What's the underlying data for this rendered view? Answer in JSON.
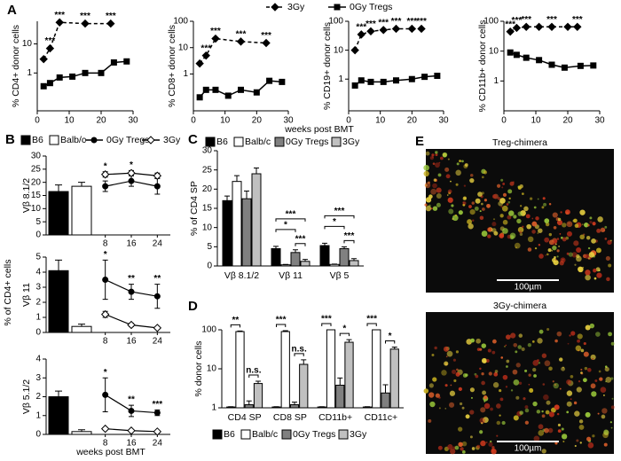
{
  "chart_data": [
    {
      "type": "line",
      "panel": "A",
      "log_y": true,
      "ylabel": "% CD4+ donor cells",
      "xlabel": "weeks post BMT",
      "xlim": [
        0,
        30
      ],
      "xticks": [
        0,
        10,
        20,
        30
      ],
      "ylim": [
        0.05,
        60
      ],
      "yticks": [
        1,
        10
      ],
      "series": [
        {
          "name": "3Gy",
          "color": "#000000",
          "line_style": "dashed",
          "marker": "diamond",
          "x": [
            2,
            4,
            7,
            15,
            23
          ],
          "values": [
            3,
            7,
            55,
            50,
            50
          ]
        },
        {
          "name": "0Gy Tregs",
          "color": "#000000",
          "line_style": "solid",
          "marker": "square",
          "x": [
            2,
            4,
            7,
            11,
            15,
            20,
            24,
            28
          ],
          "values": [
            0.35,
            0.45,
            0.7,
            0.75,
            1.0,
            1.0,
            2.3,
            2.5
          ]
        }
      ],
      "annotations": [
        "***",
        "***",
        "***",
        "***"
      ]
    },
    {
      "type": "line",
      "log_y": true,
      "ylabel": "% CD8+ donor cells",
      "xlim": [
        0,
        30
      ],
      "xticks": [
        0,
        10,
        20,
        30
      ],
      "ylim": [
        0.04,
        100
      ],
      "yticks": [
        1,
        10,
        100
      ],
      "series": [
        {
          "color": "#000000",
          "line_style": "dashed",
          "marker": "diamond",
          "x": [
            2,
            4,
            7,
            15,
            23
          ],
          "values": [
            2.5,
            5,
            22,
            17,
            15
          ]
        },
        {
          "color": "#000000",
          "line_style": "solid",
          "marker": "square",
          "x": [
            2,
            4,
            7,
            11,
            15,
            20,
            24,
            28
          ],
          "values": [
            0.13,
            0.25,
            0.25,
            0.15,
            0.25,
            0.2,
            0.55,
            0.5
          ]
        }
      ],
      "annotations": [
        "***",
        "***",
        "***",
        "***"
      ]
    },
    {
      "type": "line",
      "log_y": true,
      "ylabel": "% CD19+ donor cells",
      "xlim": [
        0,
        30
      ],
      "xticks": [
        0,
        10,
        20,
        30
      ],
      "ylim": [
        0.08,
        100
      ],
      "yticks": [
        1,
        10,
        100
      ],
      "series": [
        {
          "color": "#000000",
          "line_style": "dashed",
          "marker": "diamond",
          "x": [
            2,
            4,
            7,
            11,
            15,
            20,
            23
          ],
          "values": [
            10,
            35,
            45,
            50,
            55,
            55,
            55
          ]
        },
        {
          "color": "#000000",
          "line_style": "solid",
          "marker": "square",
          "x": [
            2,
            4,
            7,
            11,
            15,
            20,
            24,
            28
          ],
          "values": [
            0.6,
            0.9,
            0.8,
            0.8,
            0.9,
            1.0,
            1.2,
            1.3
          ]
        }
      ],
      "annotations": [
        "***",
        "***",
        "***",
        "***",
        "***",
        "***"
      ]
    },
    {
      "type": "line",
      "log_y": true,
      "ylabel": "% CD11b+ donor cells",
      "xlim": [
        0,
        30
      ],
      "xticks": [
        0,
        10,
        20,
        30
      ],
      "ylim": [
        0.1,
        100
      ],
      "yticks": [
        1,
        10,
        100
      ],
      "series": [
        {
          "color": "#000000",
          "line_style": "dashed",
          "marker": "diamond",
          "x": [
            2,
            4,
            7,
            11,
            15,
            20,
            23
          ],
          "values": [
            45,
            60,
            65,
            65,
            65,
            65,
            65
          ]
        },
        {
          "color": "#000000",
          "line_style": "solid",
          "marker": "square",
          "x": [
            2,
            4,
            7,
            11,
            15,
            19,
            24,
            28
          ],
          "values": [
            9,
            7.5,
            6,
            5,
            3.5,
            2.8,
            3.2,
            3.3
          ]
        }
      ],
      "annotations": [
        "***",
        "***",
        "***",
        "***",
        "***"
      ]
    },
    {
      "type": "bar-line",
      "panel": "B",
      "group_ylabel": "% of CD4+ cells",
      "ylabel": "Vβ 8.1/2",
      "xlim": [
        4,
        28
      ],
      "xticks": [
        8,
        16,
        24
      ],
      "ylim": [
        0,
        30
      ],
      "yticks": [
        0,
        5,
        10,
        15,
        20,
        25,
        30
      ],
      "series": [
        {
          "name": "B6",
          "kind": "bar",
          "color": "#000000",
          "values": [
            16.5
          ],
          "errors": [
            2.5
          ]
        },
        {
          "name": "Balb/c",
          "kind": "bar",
          "color": "#ffffff",
          "values": [
            18.5
          ],
          "errors": [
            1.5
          ]
        },
        {
          "name": "0Gy Tregs",
          "kind": "line",
          "color": "#000000",
          "marker": "circle",
          "open": false,
          "x": [
            8,
            16,
            24
          ],
          "values": [
            18.5,
            20.5,
            18.5
          ],
          "errors": [
            2,
            2,
            3
          ]
        },
        {
          "name": "3Gy",
          "kind": "line",
          "color": "#000000",
          "marker": "diamond",
          "open": true,
          "x": [
            8,
            16,
            24
          ],
          "values": [
            23,
            23.5,
            22.5
          ],
          "errors": [
            1,
            1,
            1
          ]
        }
      ],
      "annotations": [
        "*",
        "*"
      ]
    },
    {
      "type": "bar-line",
      "ylabel": "Vβ 11",
      "xlim": [
        4,
        28
      ],
      "xticks": [
        8,
        16,
        24
      ],
      "ylim": [
        0,
        5
      ],
      "yticks": [
        0,
        1,
        2,
        3,
        4,
        5
      ],
      "series": [
        {
          "kind": "bar",
          "color": "#000000",
          "values": [
            4.1
          ],
          "errors": [
            0.7
          ]
        },
        {
          "kind": "bar",
          "color": "#ffffff",
          "values": [
            0.4
          ],
          "errors": [
            0.15
          ]
        },
        {
          "kind": "line",
          "color": "#000000",
          "marker": "circle",
          "open": false,
          "x": [
            8,
            16,
            24
          ],
          "values": [
            3.5,
            2.7,
            2.4
          ],
          "errors": [
            1.3,
            0.5,
            0.8
          ]
        },
        {
          "kind": "line",
          "color": "#000000",
          "marker": "diamond",
          "open": true,
          "x": [
            8,
            16,
            24
          ],
          "values": [
            1.2,
            0.5,
            0.3
          ],
          "errors": [
            0.2,
            0.1,
            0.05
          ]
        }
      ],
      "annotations": [
        "*",
        "**",
        "**"
      ]
    },
    {
      "type": "bar-line",
      "ylabel": "Vβ 5.1/2",
      "xlabel": "weeks post BMT",
      "xlim": [
        4,
        28
      ],
      "xticks": [
        8,
        16,
        24
      ],
      "ylim": [
        0,
        4
      ],
      "yticks": [
        0,
        1,
        2,
        3,
        4
      ],
      "series": [
        {
          "kind": "bar",
          "color": "#000000",
          "values": [
            2.0
          ],
          "errors": [
            0.3
          ]
        },
        {
          "kind": "bar",
          "color": "#ffffff",
          "values": [
            0.15
          ],
          "errors": [
            0.1
          ]
        },
        {
          "kind": "line",
          "color": "#000000",
          "marker": "circle",
          "open": false,
          "x": [
            8,
            16,
            24
          ],
          "values": [
            2.1,
            1.25,
            1.15
          ],
          "errors": [
            0.9,
            0.3,
            0.15
          ]
        },
        {
          "kind": "line",
          "color": "#000000",
          "marker": "diamond",
          "open": true,
          "x": [
            8,
            16,
            24
          ],
          "values": [
            0.3,
            0.2,
            0.15
          ],
          "errors": [
            0.05,
            0.05,
            0.05
          ]
        }
      ],
      "annotations": [
        "*",
        "**",
        "***"
      ]
    },
    {
      "type": "bar",
      "panel": "C",
      "ylabel": "% of CD4 SP",
      "categories": [
        "Vβ 8.1/2",
        "Vβ 11",
        "Vβ 5"
      ],
      "ylim": [
        0,
        30
      ],
      "yticks": [
        0,
        5,
        10,
        15,
        20,
        25,
        30
      ],
      "series": [
        {
          "name": "B6",
          "color": "#000000",
          "values": [
            17,
            4.5,
            5.3
          ],
          "errors": [
            1.2,
            0.6,
            0.6
          ]
        },
        {
          "name": "Balb/c",
          "color": "#ffffff",
          "values": [
            22,
            0.3,
            0.4
          ],
          "errors": [
            1.5,
            0.1,
            0.1
          ]
        },
        {
          "name": "0Gy Tregs",
          "color": "#808080",
          "values": [
            17.5,
            3.5,
            4.5
          ],
          "errors": [
            2,
            0.7,
            0.5
          ]
        },
        {
          "name": "3Gy",
          "color": "#c0c0c0",
          "values": [
            24,
            1.2,
            1.4
          ],
          "errors": [
            1.5,
            0.5,
            0.5
          ]
        }
      ],
      "annotations": [
        "***",
        "*",
        "***",
        "***",
        "*",
        "***"
      ]
    },
    {
      "type": "bar",
      "panel": "D",
      "log_y": true,
      "ylabel": "% donor cells",
      "categories": [
        "CD4 SP",
        "CD8 SP",
        "CD11b+",
        "CD11c+"
      ],
      "ylim": [
        1,
        100
      ],
      "yticks": [
        1,
        10,
        100
      ],
      "series": [
        {
          "name": "B6",
          "color": "#000000",
          "values": [
            1.05,
            1.05,
            1.05,
            1.05
          ],
          "errors": [
            0.02,
            0.02,
            0.02,
            0.02
          ]
        },
        {
          "name": "Balb/c",
          "color": "#ffffff",
          "values": [
            90,
            90,
            100,
            100
          ],
          "errors": [
            3,
            5,
            0,
            0
          ]
        },
        {
          "name": "0Gy Tregs",
          "color": "#808080",
          "values": [
            1.2,
            1.2,
            3.8,
            2.4
          ],
          "errors": [
            0.3,
            0.2,
            2,
            1.5
          ]
        },
        {
          "name": "3Gy",
          "color": "#c0c0c0",
          "values": [
            4.2,
            13,
            48,
            32
          ],
          "errors": [
            0.6,
            4,
            8,
            4
          ]
        }
      ],
      "annotations": [
        "**",
        "n.s.",
        "***",
        "n.s.",
        "***",
        "*",
        "***",
        "*"
      ]
    }
  ],
  "images": {
    "panel": "E",
    "items": [
      {
        "title": "Treg-chimera",
        "scale_bar": "100µm"
      },
      {
        "title": "3Gy-chimera",
        "scale_bar": "100µm"
      }
    ]
  }
}
